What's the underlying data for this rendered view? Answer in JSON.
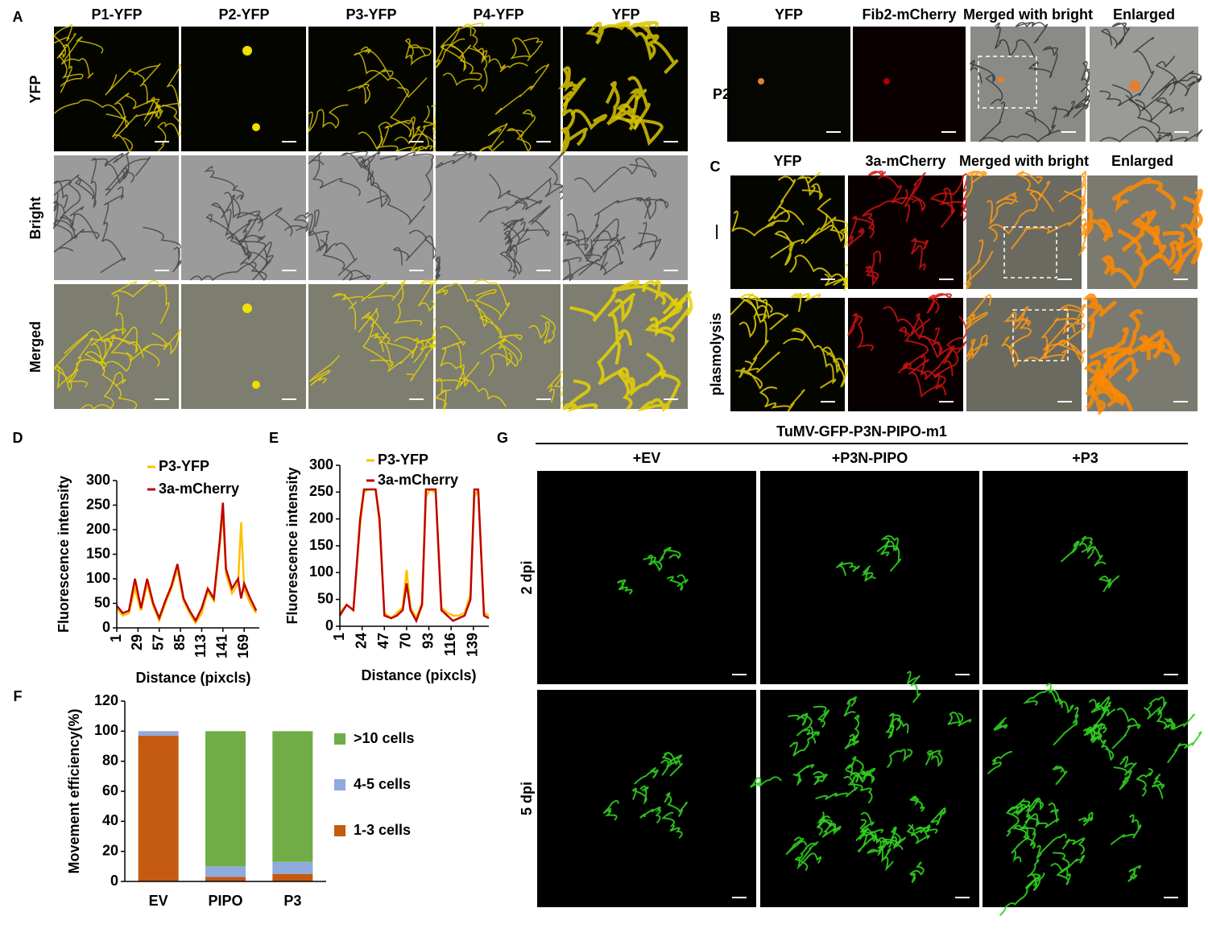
{
  "figure": {
    "panel_labels": [
      "A",
      "B",
      "C",
      "D",
      "E",
      "F",
      "G"
    ],
    "A": {
      "columns": [
        "P1-YFP",
        "P2-YFP",
        "P3-YFP",
        "P4-YFP",
        "YFP"
      ],
      "rows": [
        "YFP",
        "Bright",
        "Merged"
      ]
    },
    "B": {
      "columns": [
        "YFP",
        "Fib2-mCherry",
        "Merged with bright",
        "Enlarged"
      ],
      "rows": [
        "P2"
      ]
    },
    "C": {
      "columns": [
        "YFP",
        "3a-mCherry",
        "Merged with bright",
        "Enlarged"
      ],
      "rows": [
        "—",
        "plasmolysis"
      ]
    },
    "G": {
      "title": "TuMV-GFP-P3N-PIPO-m1",
      "columns": [
        "+EV",
        "+P3N-PIPO",
        "+P3"
      ],
      "rows": [
        "2 dpi",
        "5 dpi"
      ]
    }
  },
  "chart_data": [
    {
      "type": "line",
      "y_label": "Fluorescence intensity",
      "x_label": "Distance (pixcls)",
      "x": [
        1,
        9,
        17,
        25,
        33,
        41,
        49,
        57,
        65,
        73,
        81,
        89,
        97,
        105,
        113,
        121,
        129,
        137,
        141,
        145,
        153,
        161,
        165,
        169,
        177,
        185
      ],
      "series": [
        {
          "name": "P3-YFP",
          "color": "#ffc000",
          "values": [
            40,
            25,
            30,
            80,
            35,
            90,
            45,
            15,
            50,
            80,
            120,
            55,
            30,
            10,
            30,
            75,
            55,
            170,
            240,
            110,
            70,
            90,
            215,
            80,
            50,
            30
          ]
        },
        {
          "name": "3a-mCherry",
          "color": "#c00000",
          "values": [
            45,
            30,
            35,
            100,
            40,
            100,
            50,
            20,
            55,
            85,
            130,
            60,
            35,
            15,
            40,
            80,
            60,
            180,
            255,
            120,
            80,
            100,
            60,
            90,
            60,
            35
          ]
        }
      ],
      "xlim": [
        1,
        189
      ],
      "ylim": [
        0,
        300
      ],
      "xticks": [
        1,
        29,
        57,
        85,
        113,
        141,
        169
      ],
      "yticks": [
        0,
        50,
        100,
        150,
        200,
        250,
        300
      ]
    },
    {
      "type": "line",
      "y_label": "Fluorescence intensity",
      "x_label": "Distance (pixcls)",
      "x": [
        1,
        8,
        15,
        22,
        26,
        30,
        38,
        42,
        47,
        54,
        60,
        66,
        70,
        74,
        80,
        86,
        90,
        94,
        100,
        106,
        112,
        118,
        124,
        130,
        136,
        140,
        144,
        150,
        155
      ],
      "series": [
        {
          "name": "P3-YFP",
          "color": "#ffc000",
          "values": [
            25,
            40,
            30,
            190,
            250,
            255,
            255,
            190,
            25,
            15,
            25,
            35,
            105,
            35,
            15,
            45,
            240,
            255,
            250,
            35,
            25,
            20,
            20,
            25,
            60,
            240,
            255,
            25,
            20
          ]
        },
        {
          "name": "3a-mCherry",
          "color": "#c00000",
          "values": [
            20,
            40,
            30,
            200,
            255,
            255,
            255,
            200,
            20,
            15,
            20,
            30,
            80,
            30,
            10,
            40,
            255,
            255,
            255,
            30,
            20,
            10,
            15,
            20,
            50,
            255,
            255,
            20,
            15
          ]
        }
      ],
      "xlim": [
        1,
        155
      ],
      "ylim": [
        0,
        300
      ],
      "xticks": [
        1,
        24,
        47,
        70,
        93,
        116,
        139
      ],
      "yticks": [
        0,
        50,
        100,
        150,
        200,
        250,
        300
      ]
    },
    {
      "type": "bar",
      "stacked": true,
      "y_label": "Movement efficiency(%)",
      "categories": [
        "EV",
        "PIPO",
        "P3"
      ],
      "series": [
        {
          "name": "1-3 cells",
          "color": "#c55a11",
          "values": [
            97,
            3,
            5
          ]
        },
        {
          "name": "4-5 cells",
          "color": "#8faadc",
          "values": [
            3,
            7,
            8
          ]
        },
        {
          "name": ">10 cells",
          "color": "#70ad47",
          "values": [
            0,
            90,
            87
          ]
        }
      ],
      "ylim": [
        0,
        120
      ],
      "yticks": [
        0,
        20,
        40,
        60,
        80,
        100,
        120
      ]
    }
  ]
}
